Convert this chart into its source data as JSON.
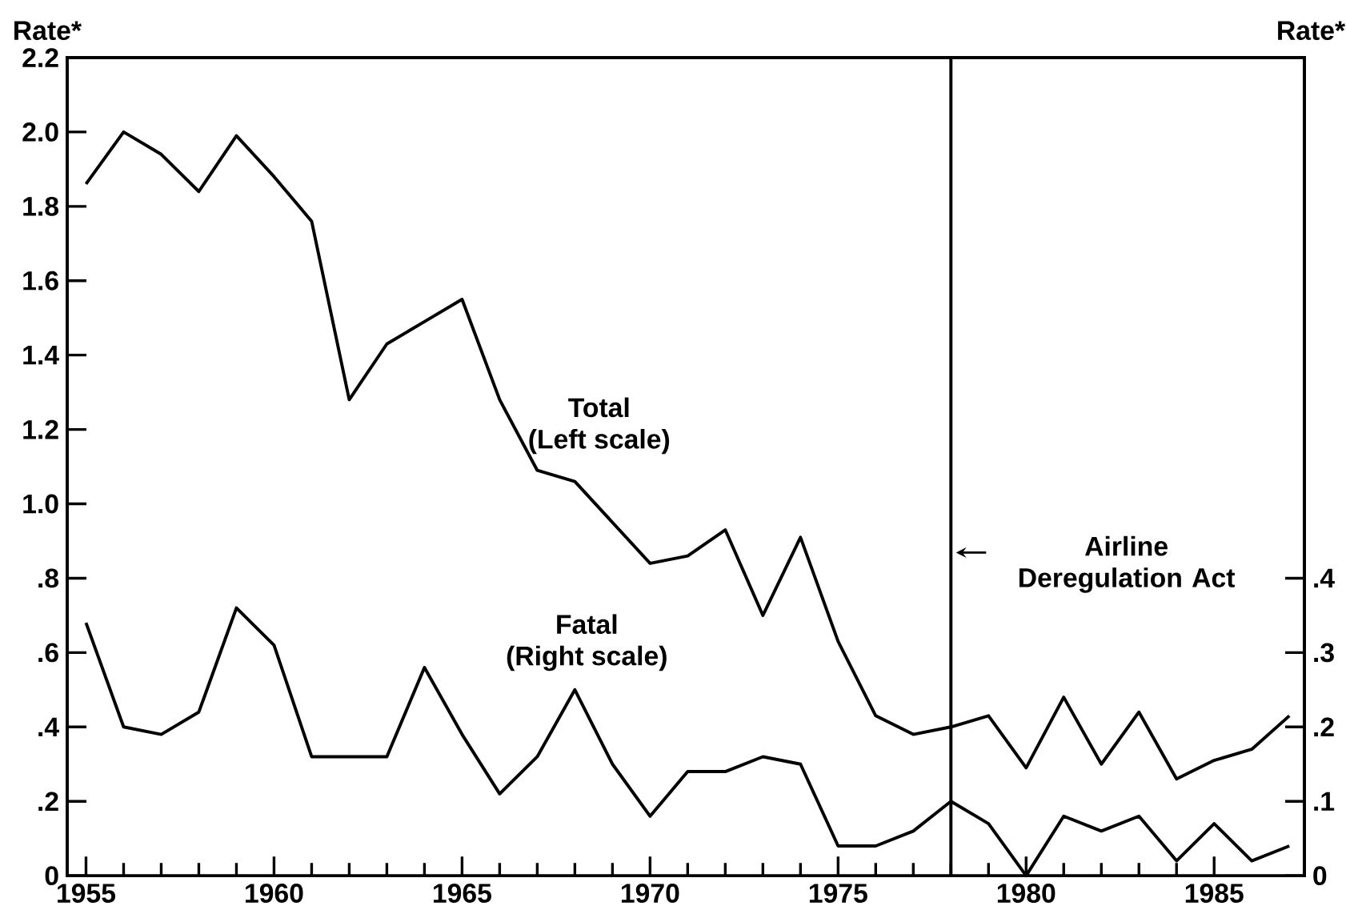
{
  "chart_data": {
    "type": "line",
    "ylabel": "Rate*",
    "y2label": "Rate*",
    "x": [
      1955,
      1956,
      1957,
      1958,
      1959,
      1960,
      1961,
      1962,
      1963,
      1964,
      1965,
      1966,
      1967,
      1968,
      1969,
      1970,
      1971,
      1972,
      1973,
      1974,
      1975,
      1976,
      1977,
      1978,
      1979,
      1980,
      1981,
      1982,
      1983,
      1984,
      1985,
      1986,
      1987
    ],
    "series": [
      {
        "name": "Total",
        "color": "#000000",
        "values": [
          1.86,
          2.0,
          1.94,
          1.84,
          1.99,
          1.88,
          1.76,
          1.28,
          1.43,
          1.49,
          1.55,
          1.28,
          1.09,
          1.06,
          0.95,
          0.84,
          0.86,
          0.93,
          0.7,
          0.91,
          0.63,
          0.43,
          0.38,
          0.4,
          0.43,
          0.29,
          0.48,
          0.3,
          0.44,
          0.26,
          0.31,
          0.34,
          0.43
        ]
      },
      {
        "name": "Fatal",
        "color": "#000000",
        "axis": "y2",
        "values": [
          0.34,
          0.2,
          0.19,
          0.22,
          0.36,
          0.31,
          0.16,
          0.16,
          0.16,
          0.28,
          0.19,
          0.11,
          0.16,
          0.25,
          0.15,
          0.08,
          0.14,
          0.14,
          0.16,
          0.15,
          0.04,
          0.04,
          0.06,
          0.1,
          0.07,
          0,
          0.08,
          0.06,
          0.08,
          0.02,
          0.07,
          0.02,
          0.04
        ]
      }
    ],
    "annotations": [
      "(Left scale)",
      "(Right scale)"
    ],
    "xlim": [
      1954.5,
      1987.4
    ],
    "xticks": [
      1955,
      1960,
      1965,
      1970,
      1975,
      1980,
      1985
    ],
    "ylim": [
      0,
      2.2
    ],
    "yticks": [
      {
        "value": 0,
        "label": "0"
      },
      {
        "value": 0.2,
        "label": ".2"
      },
      {
        "value": 0.4,
        "label": ".4"
      },
      {
        "value": 0.6,
        "label": ".6"
      },
      {
        "value": 0.8,
        "label": ".8"
      },
      {
        "value": 1.0,
        "label": "1.0"
      },
      {
        "value": 1.2,
        "label": "1.2"
      },
      {
        "value": 1.4,
        "label": "1.4"
      },
      {
        "value": 1.6,
        "label": "1.6"
      },
      {
        "value": 1.8,
        "label": "1.8"
      },
      {
        "value": 2.0,
        "label": "2.0"
      },
      {
        "value": 2.2,
        "label": "2.2"
      }
    ],
    "y2lim": [
      0,
      1.1
    ],
    "y2ticks": [
      {
        "value": 0,
        "label": "0"
      },
      {
        "value": 0.1,
        "label": ".1"
      },
      {
        "value": 0.2,
        "label": ".2"
      },
      {
        "value": 0.3,
        "label": ".3"
      },
      {
        "value": 0.4,
        "label": ".4"
      }
    ],
    "ref_lines": [
      {
        "axis": "x",
        "value": 1978,
        "label": "Airline Deregulation Act",
        "color": "#000000"
      }
    ]
  }
}
